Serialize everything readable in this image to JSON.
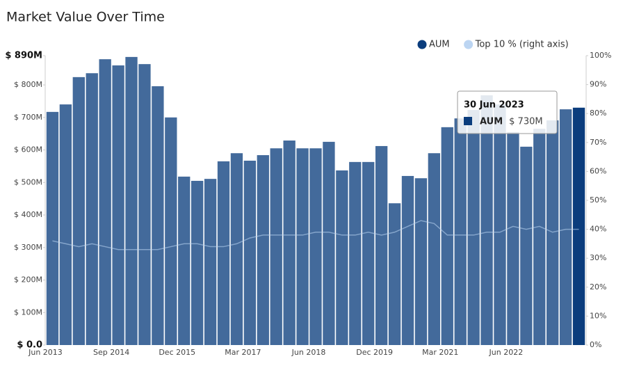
{
  "chart_data": {
    "type": "bar",
    "title": "Market Value Over Time",
    "categories": [
      "Jun 2013",
      null,
      null,
      null,
      null,
      "Sep 2014",
      null,
      null,
      null,
      null,
      "Dec 2015",
      null,
      null,
      null,
      null,
      "Mar 2017",
      null,
      null,
      null,
      null,
      "Jun 2018",
      null,
      null,
      null,
      null,
      "Dec 2019",
      null,
      null,
      null,
      null,
      "Mar 2021",
      null,
      null,
      null,
      null,
      "Jun 2022",
      null,
      null,
      null,
      null,
      null
    ],
    "series": [
      {
        "name": "AUM",
        "color": "#0b3d7d",
        "values": [
          717,
          740,
          824,
          836,
          879,
          860,
          886,
          864,
          796,
          700,
          518,
          505,
          511,
          565,
          590,
          567,
          584,
          605,
          629,
          605,
          605,
          625,
          537,
          563,
          563,
          612,
          436,
          520,
          513,
          590,
          670,
          697,
          723,
          768,
          740,
          655,
          610,
          665,
          691,
          725,
          730
        ]
      },
      {
        "name": "Top 10 % (right axis)",
        "color": "#bcd5f2",
        "type": "line",
        "axis": "y2",
        "values": [
          36,
          35,
          34,
          35,
          34,
          33,
          33,
          33,
          33,
          34,
          35,
          35,
          34,
          34,
          35,
          37,
          38,
          38,
          38,
          38,
          39,
          39,
          38,
          38,
          39,
          38,
          39,
          41,
          43,
          42,
          38,
          38,
          38,
          39,
          39,
          41,
          40,
          41,
          39,
          40,
          40
        ]
      }
    ],
    "ylim": [
      0,
      890
    ],
    "yticks": [
      {
        "value": 0,
        "label": "$ 0.0"
      },
      {
        "value": 100,
        "label": "$ 100M"
      },
      {
        "value": 200,
        "label": "$ 200M"
      },
      {
        "value": 300,
        "label": "$ 300M"
      },
      {
        "value": 400,
        "label": "$ 400M"
      },
      {
        "value": 500,
        "label": "$ 500M"
      },
      {
        "value": 600,
        "label": "$ 600M"
      },
      {
        "value": 700,
        "label": "$ 700M"
      },
      {
        "value": 800,
        "label": "$ 800M"
      },
      {
        "value": 890,
        "label": "$ 890M"
      }
    ],
    "y2lim": [
      0,
      100
    ],
    "y2ticks": [
      {
        "value": 0,
        "label": "0%"
      },
      {
        "value": 10,
        "label": "10%"
      },
      {
        "value": 20,
        "label": "20%"
      },
      {
        "value": 30,
        "label": "30%"
      },
      {
        "value": 40,
        "label": "40%"
      },
      {
        "value": 50,
        "label": "50%"
      },
      {
        "value": 60,
        "label": "60%"
      },
      {
        "value": 70,
        "label": "70%"
      },
      {
        "value": 80,
        "label": "80%"
      },
      {
        "value": 90,
        "label": "90%"
      },
      {
        "value": 100,
        "label": "100%"
      }
    ],
    "grid": false,
    "legend": "top-right",
    "tooltip": {
      "title": "30 Jun 2023",
      "value_label": "$ 730M"
    }
  }
}
